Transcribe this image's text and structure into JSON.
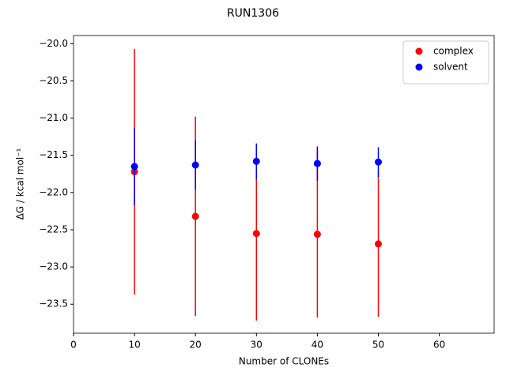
{
  "chart_data": {
    "type": "errorbar-scatter",
    "title": "RUN1306",
    "x_label": "Number of CLONEs",
    "y_label": "ΔG / kcal mol⁻¹",
    "x": [
      10,
      20,
      30,
      40,
      50
    ],
    "series": [
      {
        "name": "complex",
        "color": "#ff0000",
        "values": [
          -21.72,
          -22.32,
          -22.55,
          -22.56,
          -22.69
        ],
        "errors": [
          1.65,
          1.34,
          1.17,
          1.12,
          0.98
        ]
      },
      {
        "name": "solvent",
        "color": "#0000ff",
        "values": [
          -21.65,
          -21.63,
          -21.58,
          -21.61,
          -21.59
        ],
        "errors": [
          0.52,
          0.33,
          0.24,
          0.23,
          0.2
        ]
      }
    ],
    "xlim": [
      0,
      69
    ],
    "ylim": [
      -23.89,
      -19.89
    ],
    "xticks": [
      0,
      10,
      20,
      30,
      40,
      50,
      60
    ],
    "yticks": [
      {
        "value": -20.0,
        "label": "−20.0"
      },
      {
        "value": -20.5,
        "label": "−20.5"
      },
      {
        "value": -21.0,
        "label": "−21.0"
      },
      {
        "value": -21.5,
        "label": "−21.5"
      },
      {
        "value": -22.0,
        "label": "−22.0"
      },
      {
        "value": -22.5,
        "label": "−22.5"
      },
      {
        "value": -23.0,
        "label": "−23.0"
      },
      {
        "value": -23.5,
        "label": "−23.5"
      }
    ],
    "legend": "upper right",
    "grid": false
  }
}
